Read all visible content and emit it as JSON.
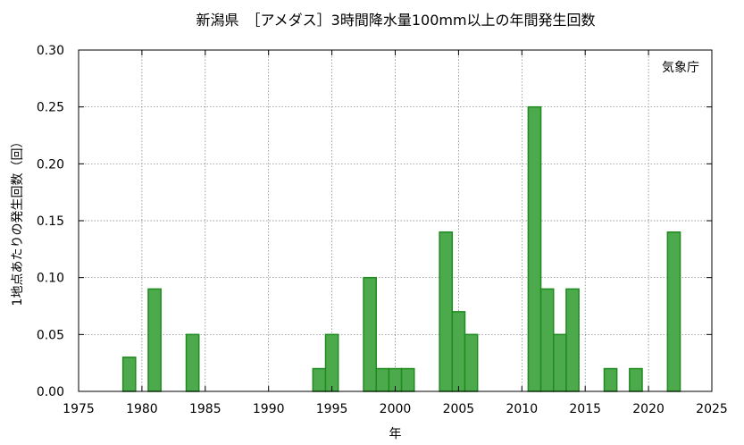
{
  "chart_data": {
    "type": "bar",
    "title": "新潟県　［アメダス］3時間降水量100mm以上の年間発生回数",
    "xlabel": "年",
    "ylabel": "1地点あたりの発生回数（回）",
    "credit": "気象庁",
    "xlim": [
      1975,
      2025
    ],
    "ylim": [
      0,
      0.3
    ],
    "x_ticks": [
      1975,
      1980,
      1985,
      1990,
      1995,
      2000,
      2005,
      2010,
      2015,
      2020,
      2025
    ],
    "y_ticks": [
      "0.00",
      "0.05",
      "0.10",
      "0.15",
      "0.20",
      "0.25",
      "0.30"
    ],
    "grid": true,
    "series": [
      {
        "x": [
          1979,
          1981,
          1984,
          1994,
          1995,
          1998,
          1999,
          2000,
          2001,
          2004,
          2005,
          2006,
          2011,
          2012,
          2013,
          2014,
          2017,
          2019,
          2022
        ],
        "values": [
          0.03,
          0.09,
          0.05,
          0.02,
          0.05,
          0.1,
          0.02,
          0.02,
          0.02,
          0.14,
          0.07,
          0.05,
          0.25,
          0.09,
          0.05,
          0.09,
          0.02,
          0.02,
          0.14
        ]
      }
    ],
    "colors": {
      "bar_fill": "#4caa4c",
      "bar_edge": "#1f8a1f"
    }
  }
}
